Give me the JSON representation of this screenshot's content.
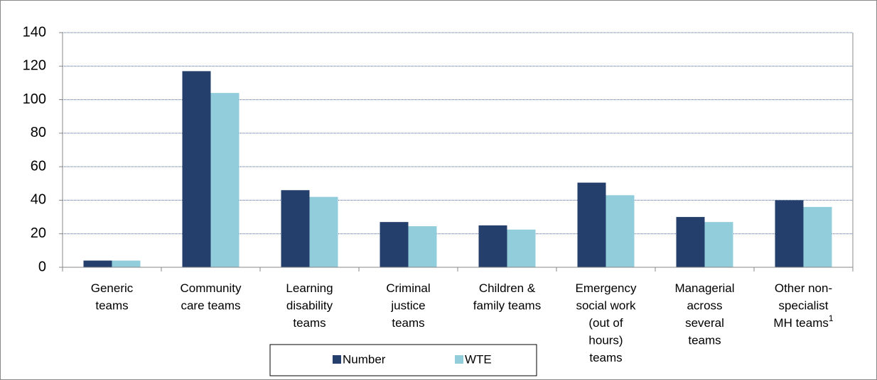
{
  "chart_data": {
    "type": "bar",
    "categories": [
      [
        "Generic",
        "teams"
      ],
      [
        "Community",
        "care teams"
      ],
      [
        "Learning",
        "disability",
        "teams"
      ],
      [
        "Criminal",
        "justice",
        "teams"
      ],
      [
        "Children &",
        "family teams"
      ],
      [
        "Emergency",
        "social work",
        "(out of",
        "hours)",
        "teams"
      ],
      [
        "Managerial",
        "across",
        "several",
        "teams"
      ],
      [
        "Other non-",
        "specialist",
        "MH teams"
      ]
    ],
    "category_superscripts": {
      "7": "1"
    },
    "series": [
      {
        "name": "Number",
        "color": "#243f6b",
        "values": [
          4,
          117,
          46,
          27,
          25,
          50.5,
          30,
          40
        ]
      },
      {
        "name": "WTE",
        "color": "#92cddc",
        "values": [
          4,
          104,
          42,
          24.5,
          22.5,
          43,
          27,
          36
        ]
      }
    ],
    "ylim": [
      0,
      140
    ],
    "yticks": [
      0,
      20,
      40,
      60,
      80,
      100,
      120,
      140
    ],
    "grid": true,
    "legend": "bottom"
  }
}
